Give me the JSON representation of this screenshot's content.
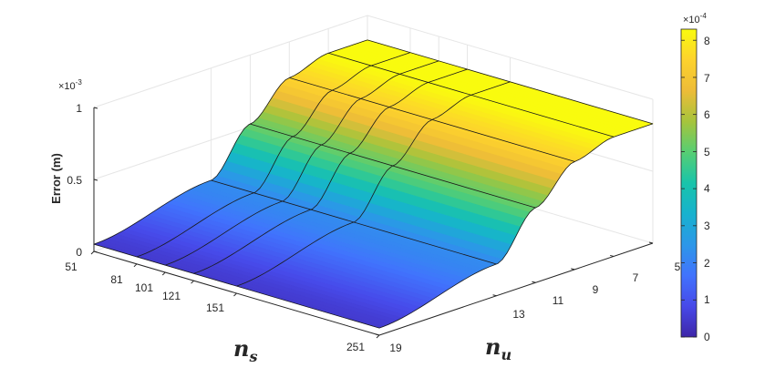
{
  "chart_data": {
    "type": "surface",
    "zlabel": "Error (m)",
    "z_multiplier": {
      "base": "×10",
      "exp": "-3"
    },
    "z_ticks": [
      "0",
      "0.5",
      "1"
    ],
    "zlim": [
      0,
      0.001
    ],
    "ns": {
      "label_base": "n",
      "label_sub": "s",
      "ticks": [
        "51",
        "81",
        "101",
        "121",
        "151",
        "251"
      ]
    },
    "nu": {
      "label_base": "n",
      "label_sub": "u",
      "ticks": [
        "19",
        "13",
        "11",
        "9",
        "7",
        "5"
      ],
      "values": [
        19,
        13,
        11,
        9,
        7,
        5
      ]
    },
    "z_values_by_nu": [
      5e-05,
      0.00022,
      0.00052,
      0.00075,
      0.00083,
      0.00083
    ],
    "colorbar": {
      "multiplier": {
        "base": "×10",
        "exp": "-4"
      },
      "ticks": [
        "0",
        "1",
        "2",
        "3",
        "4",
        "5",
        "6",
        "7",
        "8"
      ],
      "range": [
        0,
        8.3
      ],
      "colormap": "parula"
    },
    "grid": true
  }
}
